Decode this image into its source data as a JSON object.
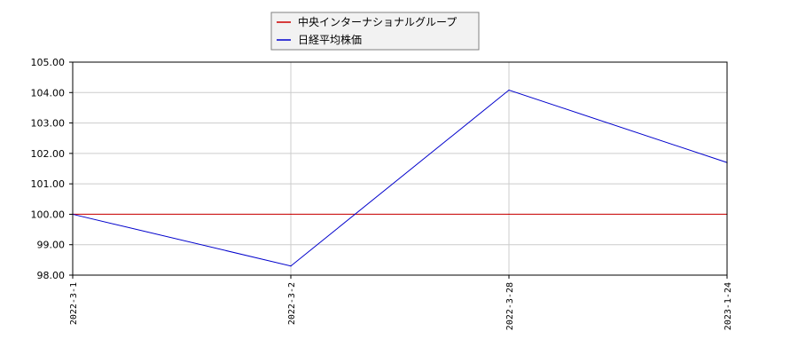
{
  "chart_data": {
    "type": "line",
    "x": [
      "2022-3-1",
      "2022-3-2",
      "2022-3-28",
      "2023-1-24"
    ],
    "series": [
      {
        "name": "中央インターナショナルグループ",
        "color": "#cc0000",
        "values": [
          100.0,
          100.0,
          100.0,
          100.0
        ]
      },
      {
        "name": "日経平均株価",
        "color": "#0000cc",
        "values": [
          100.0,
          98.3,
          104.08,
          101.7
        ]
      }
    ],
    "ylim": [
      98.0,
      105.0
    ],
    "yticks": [
      "98.00",
      "99.00",
      "100.00",
      "101.00",
      "102.00",
      "103.00",
      "104.00",
      "105.00"
    ],
    "grid": true,
    "legend_position": "top-center"
  }
}
